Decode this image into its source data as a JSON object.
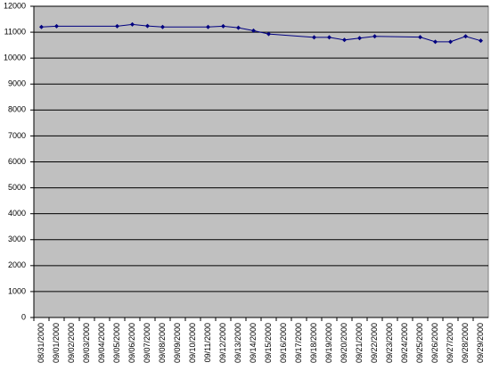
{
  "chart_data": {
    "type": "line",
    "categories": [
      "08/31/2000",
      "09/01/2000",
      "09/02/2000",
      "09/03/2000",
      "09/04/2000",
      "09/05/2000",
      "09/06/2000",
      "09/07/2000",
      "09/08/2000",
      "09/09/2000",
      "09/10/2000",
      "09/11/2000",
      "09/12/2000",
      "09/13/2000",
      "09/14/2000",
      "09/15/2000",
      "09/16/2000",
      "09/17/2000",
      "09/18/2000",
      "09/19/2000",
      "09/20/2000",
      "09/21/2000",
      "09/22/2000",
      "09/23/2000",
      "09/24/2000",
      "09/25/2000",
      "09/26/2000",
      "09/27/2000",
      "09/28/2000",
      "09/29/2000"
    ],
    "values": [
      11200,
      11230,
      null,
      null,
      null,
      11230,
      11300,
      11240,
      11200,
      null,
      null,
      11200,
      11230,
      11170,
      11060,
      10930,
      null,
      null,
      10800,
      10800,
      10700,
      10770,
      10840,
      null,
      null,
      10810,
      10630,
      10630,
      10840,
      10670
    ],
    "color": "#000080",
    "connect_gaps": true,
    "ylim": [
      0,
      12000
    ],
    "yticks": [
      0,
      1000,
      2000,
      3000,
      4000,
      5000,
      6000,
      7000,
      8000,
      9000,
      10000,
      11000,
      12000
    ],
    "grid": true,
    "plot_background": "#c0c0c0"
  }
}
